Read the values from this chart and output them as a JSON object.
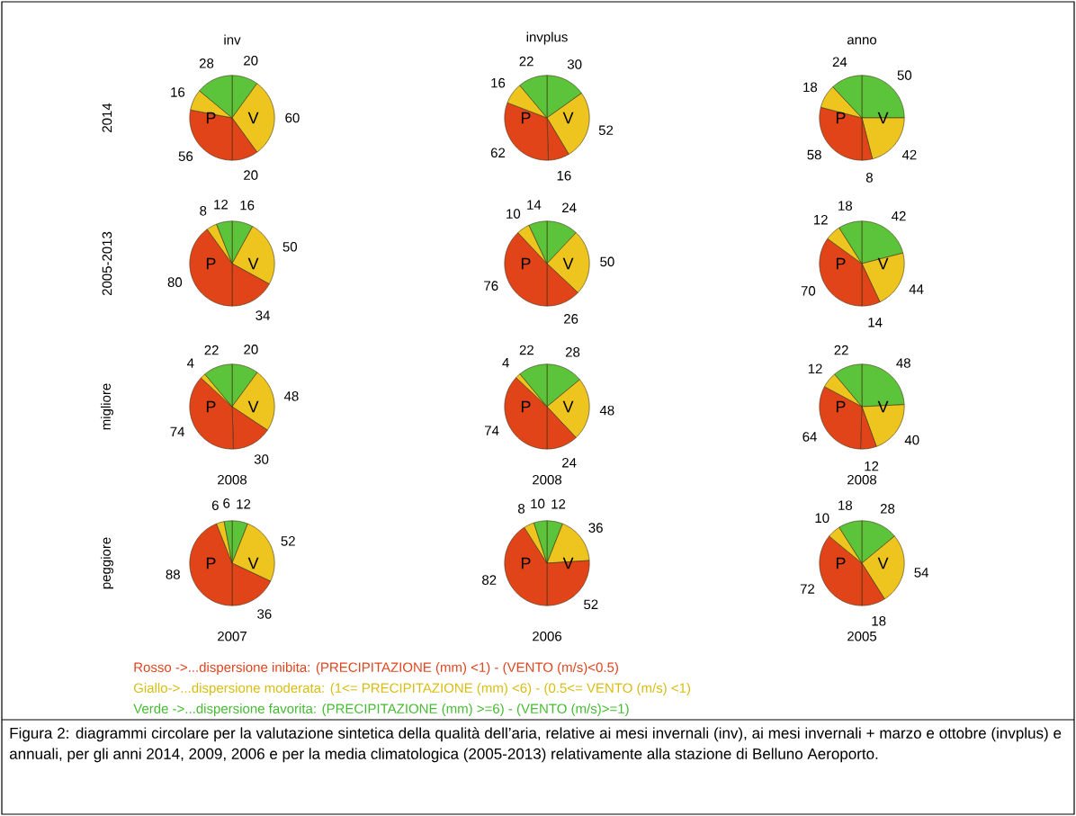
{
  "chart_data": [
    {
      "type": "pie",
      "title": "inv",
      "ylabel": "2014",
      "categories": [
        null,
        null,
        null,
        null,
        null,
        null
      ],
      "values": [
        20,
        60,
        20,
        56,
        16,
        28
      ],
      "colors": [
        "#5cc43a",
        "#eec41e",
        "#e2441a",
        "#e2441a",
        "#eec41e",
        "#5cc43a"
      ],
      "annotations": [
        "P",
        "V"
      ],
      "data_labels": true
    },
    {
      "type": "pie",
      "title": "invplus",
      "categories": [
        null,
        null,
        null,
        null,
        null,
        null
      ],
      "values": [
        30,
        52,
        16,
        62,
        16,
        22
      ],
      "colors": [
        "#5cc43a",
        "#eec41e",
        "#e2441a",
        "#e2441a",
        "#eec41e",
        "#5cc43a"
      ],
      "annotations": [
        "P",
        "V"
      ],
      "data_labels": true
    },
    {
      "type": "pie",
      "title": "anno",
      "categories": [
        null,
        null,
        null,
        null,
        null,
        null
      ],
      "values": [
        50,
        42,
        8,
        58,
        18,
        24
      ],
      "colors": [
        "#5cc43a",
        "#eec41e",
        "#e2441a",
        "#e2441a",
        "#eec41e",
        "#5cc43a"
      ],
      "annotations": [
        "P",
        "V"
      ],
      "data_labels": true
    },
    {
      "type": "pie",
      "ylabel": "2005-2013",
      "categories": [
        null,
        null,
        null,
        null,
        null,
        null
      ],
      "values": [
        16,
        50,
        34,
        80,
        8,
        12
      ],
      "colors": [
        "#5cc43a",
        "#eec41e",
        "#e2441a",
        "#e2441a",
        "#eec41e",
        "#5cc43a"
      ],
      "annotations": [
        "P",
        "V"
      ],
      "data_labels": true
    },
    {
      "type": "pie",
      "categories": [
        null,
        null,
        null,
        null,
        null,
        null
      ],
      "values": [
        24,
        50,
        26,
        76,
        10,
        14
      ],
      "colors": [
        "#5cc43a",
        "#eec41e",
        "#e2441a",
        "#e2441a",
        "#eec41e",
        "#5cc43a"
      ],
      "annotations": [
        "P",
        "V"
      ],
      "data_labels": true
    },
    {
      "type": "pie",
      "categories": [
        null,
        null,
        null,
        null,
        null,
        null
      ],
      "values": [
        42,
        44,
        14,
        70,
        12,
        18
      ],
      "colors": [
        "#5cc43a",
        "#eec41e",
        "#e2441a",
        "#e2441a",
        "#eec41e",
        "#5cc43a"
      ],
      "annotations": [
        "P",
        "V"
      ],
      "data_labels": true
    },
    {
      "type": "pie",
      "ylabel": "migliore",
      "subtitle": "2008",
      "categories": [
        null,
        null,
        null,
        null,
        null,
        null
      ],
      "values": [
        20,
        48,
        30,
        74,
        4,
        22
      ],
      "colors": [
        "#5cc43a",
        "#eec41e",
        "#e2441a",
        "#e2441a",
        "#eec41e",
        "#5cc43a"
      ],
      "annotations": [
        "P",
        "V"
      ],
      "data_labels": true
    },
    {
      "type": "pie",
      "subtitle": "2008",
      "categories": [
        null,
        null,
        null,
        null,
        null,
        null
      ],
      "values": [
        28,
        48,
        24,
        74,
        4,
        22
      ],
      "colors": [
        "#5cc43a",
        "#eec41e",
        "#e2441a",
        "#e2441a",
        "#eec41e",
        "#5cc43a"
      ],
      "annotations": [
        "P",
        "V"
      ],
      "data_labels": true
    },
    {
      "type": "pie",
      "subtitle": "2008",
      "categories": [
        null,
        null,
        null,
        null,
        null,
        null
      ],
      "values": [
        48,
        40,
        12,
        64,
        12,
        22
      ],
      "colors": [
        "#5cc43a",
        "#eec41e",
        "#e2441a",
        "#e2441a",
        "#eec41e",
        "#5cc43a"
      ],
      "annotations": [
        "P",
        "V"
      ],
      "data_labels": true
    },
    {
      "type": "pie",
      "ylabel": "peggiore",
      "subtitle": "2007",
      "categories": [
        null,
        null,
        null,
        null,
        null,
        null
      ],
      "values": [
        12,
        52,
        36,
        88,
        6,
        6
      ],
      "colors": [
        "#5cc43a",
        "#eec41e",
        "#e2441a",
        "#e2441a",
        "#eec41e",
        "#5cc43a"
      ],
      "annotations": [
        "P",
        "V"
      ],
      "data_labels": true
    },
    {
      "type": "pie",
      "subtitle": "2006",
      "categories": [
        null,
        null,
        null,
        null,
        null,
        null
      ],
      "values": [
        12,
        36,
        52,
        82,
        8,
        10
      ],
      "colors": [
        "#5cc43a",
        "#eec41e",
        "#e2441a",
        "#e2441a",
        "#eec41e",
        "#5cc43a"
      ],
      "annotations": [
        "P",
        "V"
      ],
      "data_labels": true
    },
    {
      "type": "pie",
      "subtitle": "2005",
      "categories": [
        null,
        null,
        null,
        null,
        null,
        null
      ],
      "values": [
        28,
        54,
        18,
        72,
        10,
        18
      ],
      "colors": [
        "#5cc43a",
        "#eec41e",
        "#e2441a",
        "#e2441a",
        "#eec41e",
        "#5cc43a"
      ],
      "annotations": [
        "P",
        "V"
      ],
      "data_labels": true
    },
    {
      "type": "other",
      "annotations": [
        "Rosso ->...dispersione  inibita: (PRECIPITAZIONE (mm) <1)  - (VENTO (m/s)<0.5)",
        "Giallo->...dispersione moderata:  (1<= PRECIPITAZIONE (mm) <6)  -  (0.5<= VENTO (m/s) <1)",
        "Verde ->...dispersione favorita: (PRECIPITAZIONE (mm) >=6)  - (VENTO (m/s)>=1)",
        "Figura 2: diagrammi circolare per la valutazione sintetica della qualità dell’aria, relative ai mesi invernali (inv), ai mesi invernali + marzo e ottobre (invplus) e annuali, per gli anni 2014, 2009, 2006 e per la media climatologica (2005-2013) relativamente alla stazione di Belluno Aeroporto."
      ],
      "colors": [
        "#e0441e",
        "#d8bc10",
        "#44bc30",
        "#000000"
      ]
    }
  ]
}
